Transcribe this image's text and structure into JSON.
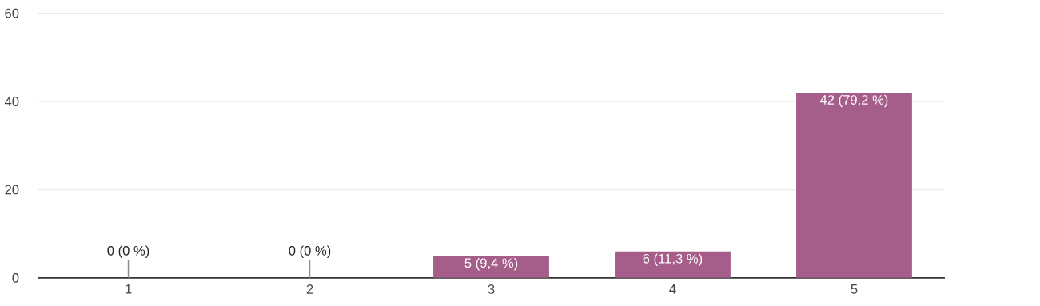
{
  "chart_data": {
    "type": "bar",
    "categories": [
      "1",
      "2",
      "3",
      "4",
      "5"
    ],
    "values": [
      0,
      0,
      5,
      6,
      42
    ],
    "color": "#a55e8a",
    "value_labels": [
      "0 (0 %)",
      "0 (0 %)",
      "5 (9,4 %)",
      "6 (11,3 %)",
      "42 (79,2 %)"
    ],
    "ylim": [
      0,
      60
    ],
    "yticks": [
      0,
      20,
      40,
      60
    ],
    "grid": "y"
  }
}
